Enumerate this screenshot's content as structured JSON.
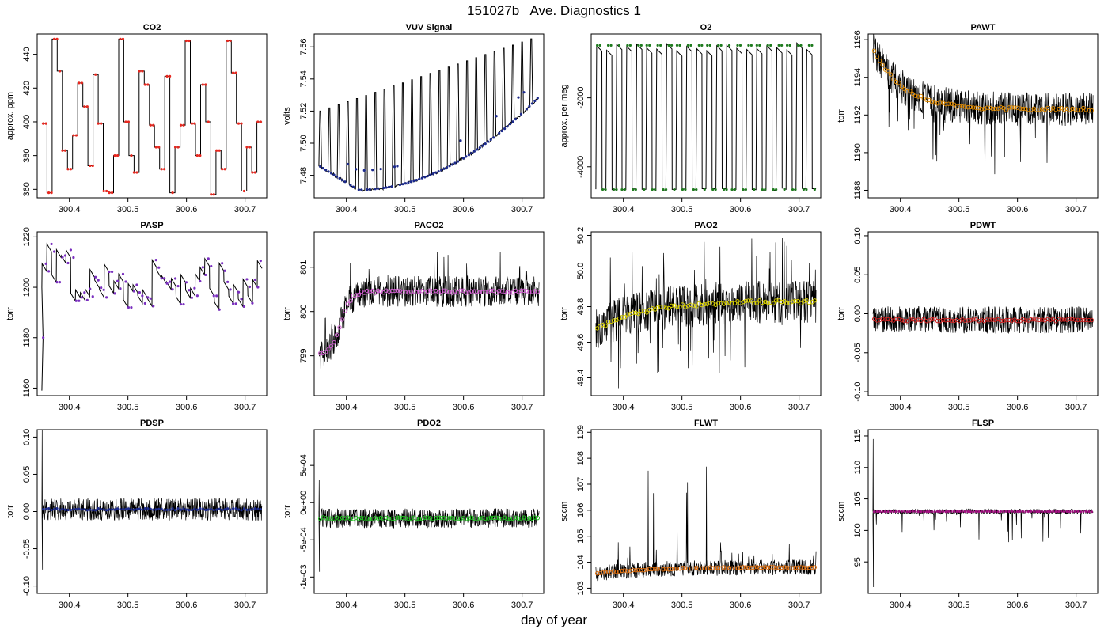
{
  "figure": {
    "title": "151027b   Ave. Diagnostics 1",
    "xlabel": "day of year"
  },
  "chart_data": [
    {
      "type": "line",
      "title": "CO2",
      "ylabel": "approx. ppm",
      "xlim": [
        300.345,
        300.737
      ],
      "ylim": [
        355,
        452
      ],
      "yticks": [
        360,
        380,
        400,
        420,
        440
      ],
      "ytick_labels": [
        "360",
        "380",
        "400",
        "420",
        "440"
      ],
      "xticks": [
        300.4,
        300.5,
        300.6,
        300.7
      ],
      "xtick_labels": [
        "300.4",
        "300.5",
        "300.6",
        "300.7"
      ],
      "pattern": "step",
      "levels": [
        399,
        358,
        449,
        430,
        383,
        372,
        392,
        423,
        409,
        374,
        428,
        399,
        359,
        358,
        380,
        449,
        400,
        380,
        370,
        430,
        422,
        398,
        385,
        372,
        427,
        358,
        385,
        398,
        448,
        399,
        380,
        422,
        400,
        357,
        383,
        372,
        448,
        429,
        399,
        359,
        385,
        370,
        400
      ],
      "band": 0,
      "marker": "#e8281f",
      "marker_style": "point",
      "n_markers": 80
    },
    {
      "type": "line",
      "title": "VUV Signal",
      "ylabel": "volts",
      "xlim": [
        300.345,
        300.737
      ],
      "ylim": [
        7.466,
        7.568
      ],
      "yticks": [
        7.48,
        7.5,
        7.52,
        7.54,
        7.56
      ],
      "ytick_labels": [
        "7.48",
        "7.50",
        "7.52",
        "7.54",
        "7.56"
      ],
      "xticks": [
        300.4,
        300.5,
        300.6,
        300.7
      ],
      "xtick_labels": [
        "300.4",
        "300.5",
        "300.6",
        "300.7"
      ],
      "pattern": "vuv",
      "baseline_start": 7.486,
      "baseline_min": 7.471,
      "baseline_min_x": 300.42,
      "baseline_end": 7.529,
      "spike_count": 24,
      "spike_top_start": 7.52,
      "spike_top_end": 7.565,
      "band": 0,
      "marker": "#1c2a8c",
      "marker_style": "point",
      "n_markers": 80
    },
    {
      "type": "line",
      "title": "O2",
      "ylabel": "approx. per meg",
      "xlim": [
        300.345,
        300.737
      ],
      "ylim": [
        -4900,
        -150
      ],
      "yticks": [
        -4000,
        -2000
      ],
      "ytick_labels": [
        "-4000",
        "-2000"
      ],
      "xticks": [
        300.4,
        300.5,
        300.6,
        300.7
      ],
      "xtick_labels": [
        "300.4",
        "300.5",
        "300.6",
        "300.7"
      ],
      "pattern": "o2",
      "high": -400,
      "low": -4620,
      "n_cycles": 22,
      "band": 0,
      "marker": "#1e7b1e",
      "marker_style": "point",
      "n_markers": 80
    },
    {
      "type": "line",
      "title": "PAWT",
      "ylabel": "torr",
      "xlim": [
        300.345,
        300.737
      ],
      "ylim": [
        1187.6,
        1196.3
      ],
      "yticks": [
        1188,
        1190,
        1192,
        1194,
        1196
      ],
      "ytick_labels": [
        "1188",
        "1190",
        "1192",
        "1194",
        "1196"
      ],
      "xticks": [
        300.4,
        300.5,
        300.6,
        300.7
      ],
      "xtick_labels": [
        "300.4",
        "300.5",
        "300.6",
        "300.7"
      ],
      "pattern": "mean",
      "mean_start": 1195.6,
      "mean_end": 1192.3,
      "tau": 0.05,
      "band": 1.8,
      "spikes_down": 3.5,
      "marker": "#e08a00",
      "marker_style": "circle",
      "n_markers": 80
    },
    {
      "type": "line",
      "title": "PASP",
      "ylabel": "torr",
      "xlim": [
        300.345,
        300.737
      ],
      "ylim": [
        1157,
        1222
      ],
      "yticks": [
        1160,
        1180,
        1200,
        1220
      ],
      "ytick_labels": [
        "1160",
        "1180",
        "1200",
        "1220"
      ],
      "xticks": [
        300.4,
        300.5,
        300.6,
        300.7
      ],
      "xtick_labels": [
        "300.4",
        "300.5",
        "300.6",
        "300.7"
      ],
      "pattern": "pasp",
      "center": 1200,
      "amp": 9,
      "band": 0,
      "marker": "#7a2fbf",
      "marker_style": "point",
      "n_markers": 80
    },
    {
      "type": "line",
      "title": "PACO2",
      "ylabel": "torr",
      "xlim": [
        300.345,
        300.737
      ],
      "ylim": [
        798.1,
        801.8
      ],
      "yticks": [
        799,
        800,
        801
      ],
      "ytick_labels": [
        "799",
        "800",
        "801"
      ],
      "xticks": [
        300.4,
        300.5,
        300.6,
        300.7
      ],
      "xtick_labels": [
        "300.4",
        "300.5",
        "300.6",
        "300.7"
      ],
      "pattern": "sigmoid",
      "mean_start": 799.0,
      "mean_end": 800.45,
      "step_x": 300.39,
      "band": 0.7,
      "spikes_up": 0.9,
      "marker": "#d060d0",
      "marker_style": "circle",
      "n_markers": 80
    },
    {
      "type": "line",
      "title": "PAO2",
      "ylabel": "torr",
      "xlim": [
        300.345,
        300.737
      ],
      "ylim": [
        49.3,
        50.22
      ],
      "yticks": [
        49.4,
        49.6,
        49.8,
        50.0,
        50.2
      ],
      "ytick_labels": [
        "49.4",
        "49.6",
        "49.8",
        "50.0",
        "50.2"
      ],
      "xticks": [
        300.4,
        300.5,
        300.6,
        300.7
      ],
      "xtick_labels": [
        "300.4",
        "300.5",
        "300.6",
        "300.7"
      ],
      "pattern": "mean",
      "mean_start": 49.67,
      "mean_end": 49.83,
      "tau": 0.08,
      "band": 0.24,
      "spikes_up": 0.38,
      "spikes_down": 0.4,
      "marker": "#d8d000",
      "marker_style": "circle",
      "n_markers": 80
    },
    {
      "type": "line",
      "title": "PDWT",
      "ylabel": "torr",
      "xlim": [
        300.345,
        300.737
      ],
      "ylim": [
        -0.105,
        0.105
      ],
      "yticks": [
        -0.1,
        -0.05,
        0.0,
        0.05,
        0.1
      ],
      "ytick_labels": [
        "-0.10",
        "-0.05",
        "0.00",
        "0.05",
        "0.10"
      ],
      "xticks": [
        300.4,
        300.5,
        300.6,
        300.7
      ],
      "xtick_labels": [
        "300.4",
        "300.5",
        "300.6",
        "300.7"
      ],
      "pattern": "flat",
      "mean_start": -0.008,
      "mean_end": -0.008,
      "band": 0.035,
      "marker": "#d02020",
      "marker_style": "circle",
      "n_markers": 80
    },
    {
      "type": "line",
      "title": "PDSP",
      "ylabel": "torr",
      "xlim": [
        300.345,
        300.737
      ],
      "ylim": [
        -0.11,
        0.11
      ],
      "yticks": [
        -0.1,
        -0.05,
        0.0,
        0.05,
        0.1
      ],
      "ytick_labels": [
        "-0.10",
        "-0.05",
        "0.00",
        "0.05",
        "0.10"
      ],
      "xticks": [
        300.4,
        300.5,
        300.6,
        300.7
      ],
      "xtick_labels": [
        "300.4",
        "300.5",
        "300.6",
        "300.7"
      ],
      "pattern": "flat",
      "mean_start": 0.003,
      "mean_end": 0.003,
      "start_spike_top": 0.11,
      "start_spike_bottom": -0.078,
      "band": 0.03,
      "marker": "#1c2a8c",
      "marker_style": "point",
      "n_markers": 80
    },
    {
      "type": "line",
      "title": "PDO2",
      "ylabel": "torr",
      "xlim": [
        300.345,
        300.737
      ],
      "ylim": [
        -0.00122,
        0.00098
      ],
      "yticks": [
        -0.001,
        -0.0005,
        0.0,
        0.0005
      ],
      "ytick_labels": [
        "-1e-03",
        "-5e-04",
        "0e+00",
        "5e-04"
      ],
      "xticks": [
        300.4,
        300.5,
        300.6,
        300.7
      ],
      "xtick_labels": [
        "300.4",
        "300.5",
        "300.6",
        "300.7"
      ],
      "pattern": "flat",
      "mean_start": -0.00021,
      "mean_end": -0.00021,
      "start_spike_top": 0.0003,
      "start_spike_bottom": -0.00093,
      "band": 0.00026,
      "marker": "#20c020",
      "marker_style": "circle",
      "n_markers": 80
    },
    {
      "type": "line",
      "title": "FLWT",
      "ylabel": "sccm",
      "xlim": [
        300.345,
        300.737
      ],
      "ylim": [
        102.8,
        109.1
      ],
      "yticks": [
        103,
        104,
        105,
        106,
        107,
        108,
        109
      ],
      "ytick_labels": [
        "103",
        "104",
        "105",
        "106",
        "107",
        "108",
        "109"
      ],
      "xticks": [
        300.4,
        300.5,
        300.6,
        300.7
      ],
      "xtick_labels": [
        "300.4",
        "300.5",
        "300.6",
        "300.7"
      ],
      "pattern": "mean",
      "mean_start": 103.55,
      "mean_end": 103.8,
      "tau": 0.08,
      "band": 0.6,
      "spikes_up": 4.5,
      "spike_zone": [
        300.4,
        300.56
      ],
      "marker": "#e07010",
      "marker_style": "circle",
      "n_markers": 80
    },
    {
      "type": "line",
      "title": "FLSP",
      "ylabel": "sccm",
      "xlim": [
        300.345,
        300.737
      ],
      "ylim": [
        90,
        116
      ],
      "yticks": [
        95,
        100,
        105,
        110,
        115
      ],
      "ytick_labels": [
        "95",
        "100",
        "105",
        "110",
        "115"
      ],
      "xticks": [
        300.4,
        300.5,
        300.6,
        300.7
      ],
      "xtick_labels": [
        "300.4",
        "300.5",
        "300.6",
        "300.7"
      ],
      "pattern": "flat",
      "mean_start": 103,
      "mean_end": 103,
      "start_spike_top": 114.5,
      "start_spike_bottom": 91,
      "band": 0.8,
      "spikes_down": 5,
      "marker": "#a01080",
      "marker_style": "point",
      "n_markers": 80
    }
  ]
}
